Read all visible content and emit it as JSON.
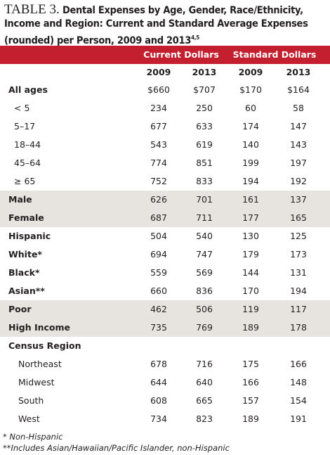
{
  "header": {
    "label": "TABLE 3.",
    "title": "Dental Expenses by Age, Gender, Race/Ethnicity, Income and Region: Current and Standard Average Expenses (rounded) per Person, 2009 and 2013",
    "superscript": "4,5"
  },
  "table": {
    "column_groups": [
      "Current Dollars",
      "Standard Dollars"
    ],
    "years": [
      "2009",
      "2013",
      "2009",
      "2013"
    ],
    "groups": [
      {
        "heading": {
          "label": "All ages",
          "values": [
            "$660",
            "$707",
            "$170",
            "$164"
          ]
        },
        "rows": [
          {
            "label": "< 5",
            "values": [
              "234",
              "250",
              "60",
              "58"
            ]
          },
          {
            "label": "5–17",
            "values": [
              "677",
              "633",
              "174",
              "147"
            ]
          },
          {
            "label": "18–44",
            "values": [
              "543",
              "619",
              "140",
              "143"
            ]
          },
          {
            "label": "45–64",
            "values": [
              "774",
              "851",
              "199",
              "197"
            ]
          },
          {
            "label": "≥ 65",
            "values": [
              "752",
              "833",
              "194",
              "192"
            ]
          }
        ]
      },
      {
        "rows": [
          {
            "label": "Male",
            "values": [
              "626",
              "701",
              "161",
              "137"
            ]
          },
          {
            "label": "Female",
            "values": [
              "687",
              "711",
              "177",
              "165"
            ]
          }
        ]
      },
      {
        "rows": [
          {
            "label": "Hispanic",
            "values": [
              "504",
              "540",
              "130",
              "125"
            ]
          },
          {
            "label": "White*",
            "values": [
              "694",
              "747",
              "179",
              "173"
            ]
          },
          {
            "label": "Black*",
            "values": [
              "559",
              "569",
              "144",
              "131"
            ]
          },
          {
            "label": "Asian**",
            "values": [
              "660",
              "836",
              "170",
              "194"
            ]
          }
        ]
      },
      {
        "rows": [
          {
            "label": "Poor",
            "values": [
              "462",
              "506",
              "119",
              "117"
            ]
          },
          {
            "label": "High Income",
            "values": [
              "735",
              "769",
              "189",
              "178"
            ]
          }
        ]
      },
      {
        "heading": {
          "label": "Census Region"
        },
        "rows": [
          {
            "label": "Northeast",
            "values": [
              "678",
              "716",
              "175",
              "166"
            ]
          },
          {
            "label": "Midwest",
            "values": [
              "644",
              "640",
              "166",
              "148"
            ]
          },
          {
            "label": "South",
            "values": [
              "608",
              "665",
              "157",
              "154"
            ]
          },
          {
            "label": "West",
            "values": [
              "734",
              "823",
              "189",
              "191"
            ]
          }
        ]
      }
    ]
  },
  "footnotes": [
    "* Non-Hispanic",
    "**Includes Asian/Hawaiian/Pacific Islander, non-Hispanic"
  ]
}
